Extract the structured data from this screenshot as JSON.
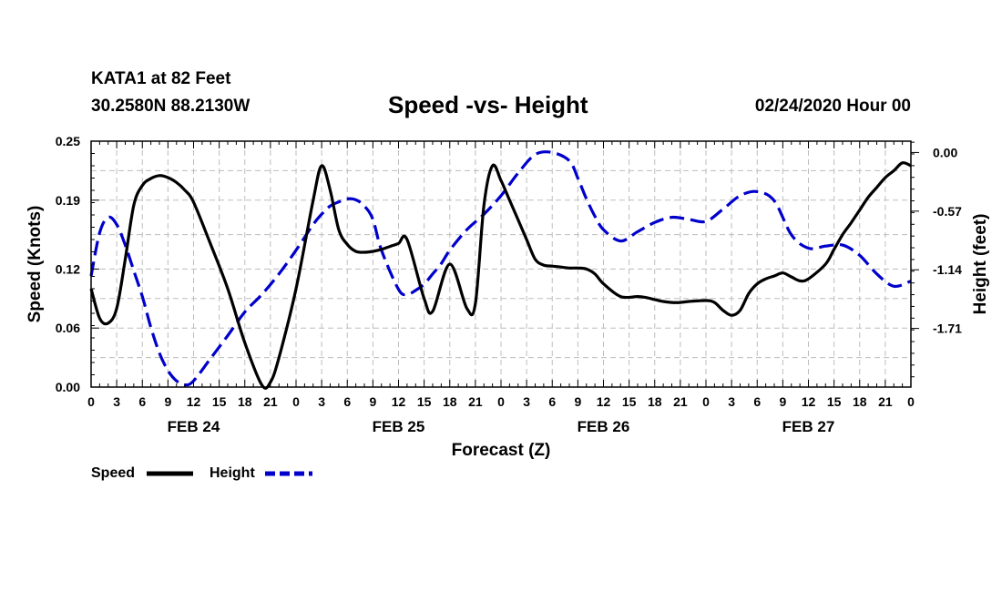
{
  "header": {
    "station": "KATA1 at 82 Feet",
    "coords": "30.2580N 88.2130W",
    "title": "Speed -vs- Height",
    "stamp": "02/24/2020 Hour 00"
  },
  "colors": {
    "speed": "#000000",
    "height": "#0000cc",
    "grid": "#bdbdbd"
  },
  "chart_data": {
    "type": "line",
    "title": "Speed -vs- Height",
    "xlabel": "Forecast (Z)",
    "ylabel": "Speed (Knots)",
    "y2label": "Height (feet)",
    "xlim": [
      0,
      96
    ],
    "ylim": [
      0,
      0.25
    ],
    "y2lim": [
      -2.28,
      0.11
    ],
    "yticks": [
      0.0,
      0.06,
      0.12,
      0.19,
      0.25
    ],
    "ytick_labels": [
      "0.00",
      "0.06",
      "0.12",
      "0.19",
      "0.25"
    ],
    "y2ticks": [
      0.0,
      -0.57,
      -1.14,
      -1.71
    ],
    "y2tick_labels": [
      "0.00",
      "-0.57",
      "-1.14",
      "-1.71"
    ],
    "xticks": [
      0,
      3,
      6,
      9,
      12,
      15,
      18,
      21,
      24,
      27,
      30,
      33,
      36,
      39,
      42,
      45,
      48,
      51,
      54,
      57,
      60,
      63,
      66,
      69,
      72,
      75,
      78,
      81,
      84,
      87,
      90,
      93,
      96
    ],
    "xtick_labels": [
      "0",
      "3",
      "6",
      "9",
      "12",
      "15",
      "18",
      "21",
      "0",
      "3",
      "6",
      "9",
      "12",
      "15",
      "18",
      "21",
      "0",
      "3",
      "6",
      "9",
      "12",
      "15",
      "18",
      "21",
      "0",
      "3",
      "6",
      "9",
      "12",
      "15",
      "18",
      "21",
      "0"
    ],
    "day_labels": [
      {
        "x": 12,
        "label": "FEB 24"
      },
      {
        "x": 36,
        "label": "FEB 25"
      },
      {
        "x": 60,
        "label": "FEB 26"
      },
      {
        "x": 84,
        "label": "FEB 27"
      }
    ],
    "series": [
      {
        "name": "Speed",
        "axis": "left",
        "style": "solid",
        "x": [
          0,
          1,
          2,
          3,
          4,
          5,
          6,
          7,
          8,
          9,
          10,
          11,
          12,
          14,
          16,
          18,
          20,
          21,
          22,
          24,
          26,
          27,
          28,
          29,
          30,
          31,
          32,
          33,
          34,
          35,
          36,
          37,
          39,
          40,
          42,
          44,
          45,
          46,
          47,
          48,
          49,
          50,
          51,
          52,
          53,
          54,
          55,
          56,
          57,
          58,
          59,
          60,
          62,
          64,
          65,
          66,
          67,
          68,
          69,
          70,
          72,
          73,
          74,
          75,
          76,
          77,
          78,
          79,
          80,
          81,
          82,
          83,
          84,
          86,
          87,
          88,
          89,
          90,
          91,
          92,
          93,
          94,
          95,
          96
        ],
        "y": [
          0.1,
          0.07,
          0.065,
          0.08,
          0.13,
          0.185,
          0.205,
          0.212,
          0.215,
          0.213,
          0.208,
          0.2,
          0.188,
          0.145,
          0.1,
          0.045,
          0.002,
          0.005,
          0.03,
          0.1,
          0.19,
          0.225,
          0.2,
          0.16,
          0.145,
          0.138,
          0.137,
          0.138,
          0.14,
          0.143,
          0.146,
          0.15,
          0.09,
          0.077,
          0.125,
          0.08,
          0.085,
          0.185,
          0.225,
          0.21,
          0.19,
          0.17,
          0.15,
          0.13,
          0.124,
          0.123,
          0.122,
          0.121,
          0.121,
          0.12,
          0.115,
          0.105,
          0.092,
          0.092,
          0.091,
          0.089,
          0.087,
          0.086,
          0.086,
          0.087,
          0.088,
          0.086,
          0.078,
          0.073,
          0.078,
          0.095,
          0.105,
          0.11,
          0.113,
          0.116,
          0.112,
          0.108,
          0.11,
          0.125,
          0.14,
          0.155,
          0.167,
          0.18,
          0.193,
          0.203,
          0.213,
          0.22,
          0.228,
          0.225
        ]
      },
      {
        "name": "Height",
        "axis": "right",
        "style": "dashed",
        "x": [
          0,
          1,
          2,
          3,
          4,
          5,
          6,
          7,
          8,
          9,
          10,
          11,
          12,
          14,
          16,
          18,
          20,
          22,
          24,
          26,
          27,
          28,
          29,
          30,
          31,
          32,
          33,
          34,
          36,
          37,
          38,
          39,
          40,
          41,
          42,
          44,
          46,
          48,
          50,
          52,
          54,
          56,
          57,
          58,
          59,
          60,
          62,
          64,
          66,
          68,
          70,
          72,
          74,
          76,
          78,
          80,
          82,
          84,
          86,
          88,
          90,
          92,
          94,
          96
        ],
        "y": [
          -1.2,
          -0.78,
          -0.63,
          -0.7,
          -0.9,
          -1.15,
          -1.4,
          -1.7,
          -1.95,
          -2.12,
          -2.22,
          -2.26,
          -2.22,
          -2.0,
          -1.78,
          -1.55,
          -1.38,
          -1.18,
          -0.95,
          -0.7,
          -0.6,
          -0.52,
          -0.48,
          -0.45,
          -0.46,
          -0.52,
          -0.65,
          -0.95,
          -1.33,
          -1.38,
          -1.34,
          -1.28,
          -1.18,
          -1.08,
          -0.95,
          -0.75,
          -0.6,
          -0.42,
          -0.2,
          -0.02,
          0.0,
          -0.08,
          -0.25,
          -0.45,
          -0.62,
          -0.75,
          -0.86,
          -0.77,
          -0.68,
          -0.63,
          -0.65,
          -0.67,
          -0.55,
          -0.42,
          -0.38,
          -0.47,
          -0.8,
          -0.93,
          -0.91,
          -0.9,
          -1.0,
          -1.18,
          -1.3,
          -1.25
        ]
      }
    ],
    "legend": [
      {
        "label": "Speed",
        "style": "solid"
      },
      {
        "label": "Height",
        "style": "dashed"
      }
    ],
    "legend_position": "bottom-left",
    "grid": true
  }
}
